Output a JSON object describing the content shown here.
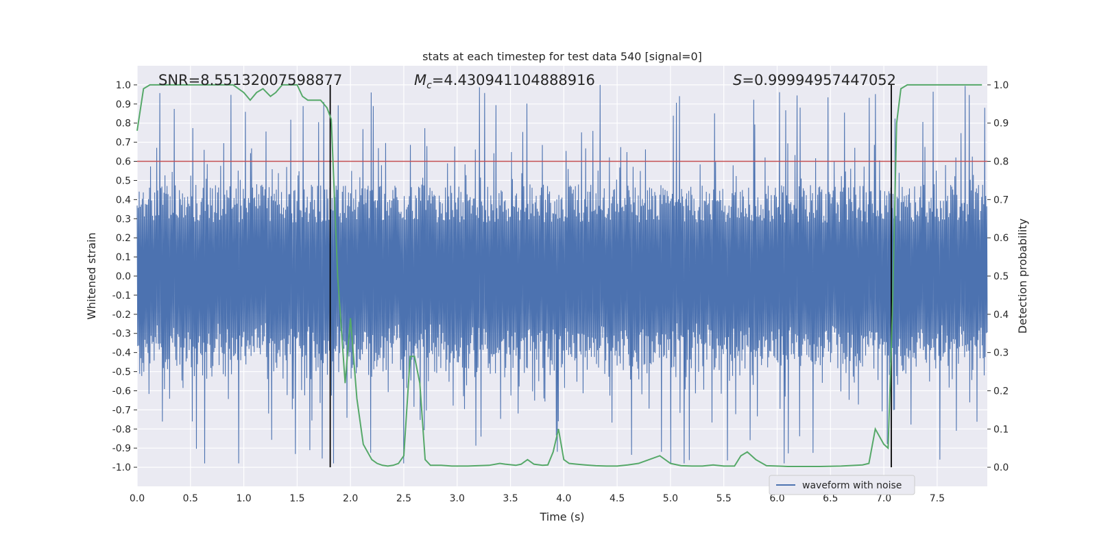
{
  "chart_data": {
    "type": "line",
    "title": "stats at each timestep for test data 540 [signal=0]",
    "xlabel": "Time (s)",
    "ylabel": "Whitened strain",
    "y2label": "Detection probability",
    "xlim": [
      0.0,
      7.97
    ],
    "ylim": [
      -1.1,
      1.1
    ],
    "y2lim": [
      -0.05,
      1.05
    ],
    "x_ticks": [
      "0.0",
      "0.5",
      "1.0",
      "1.5",
      "2.0",
      "2.5",
      "3.0",
      "3.5",
      "4.0",
      "4.5",
      "5.0",
      "5.5",
      "6.0",
      "6.5",
      "7.0",
      "7.5"
    ],
    "y_ticks": [
      "1.0",
      "0.9",
      "0.8",
      "0.7",
      "0.6",
      "0.5",
      "0.4",
      "0.3",
      "0.2",
      "0.1",
      "0.0",
      "-0.1",
      "-0.2",
      "-0.3",
      "-0.4",
      "-0.5",
      "-0.6",
      "-0.7",
      "-0.8",
      "-0.9",
      "-1.0"
    ],
    "y2_ticks": [
      "1.0",
      "0.9",
      "0.8",
      "0.7",
      "0.6",
      "0.5",
      "0.4",
      "0.3",
      "0.2",
      "0.1",
      "0.0"
    ],
    "threshold": 0.8,
    "vlines": [
      1.81,
      7.07
    ],
    "annotations": {
      "snr": "SNR=8.55132007598877",
      "mc_symbol": "M",
      "mc_sub": "c",
      "mc_value": "=4.430941104888916",
      "s_symbol": "S",
      "s_value": "=0.99994957447052"
    },
    "legend": {
      "position": "lower-center-right",
      "entries": [
        "waveform with noise"
      ]
    },
    "series": [
      {
        "name": "waveform with noise",
        "axis": "left",
        "color": "#4c72b0",
        "note": "dense noisy whitened strain, amplitude mostly within ±0.45 with spikes to ±1.0"
      },
      {
        "name": "detection probability",
        "axis": "right",
        "color": "#55a868",
        "x": [
          0.0,
          0.06,
          0.12,
          0.2,
          0.3,
          0.4,
          0.5,
          0.6,
          0.7,
          0.8,
          0.9,
          1.0,
          1.06,
          1.12,
          1.18,
          1.25,
          1.3,
          1.36,
          1.42,
          1.5,
          1.55,
          1.6,
          1.66,
          1.72,
          1.78,
          1.82,
          1.88,
          1.95,
          2.0,
          2.06,
          2.12,
          2.2,
          2.25,
          2.3,
          2.35,
          2.4,
          2.45,
          2.5,
          2.56,
          2.6,
          2.65,
          2.7,
          2.75,
          2.85,
          2.95,
          3.1,
          3.3,
          3.4,
          3.45,
          3.55,
          3.6,
          3.66,
          3.72,
          3.8,
          3.85,
          3.9,
          3.95,
          4.0,
          4.05,
          4.12,
          4.2,
          4.3,
          4.4,
          4.5,
          4.6,
          4.7,
          4.8,
          4.9,
          5.0,
          5.1,
          5.2,
          5.3,
          5.4,
          5.5,
          5.6,
          5.66,
          5.72,
          5.8,
          5.9,
          6.0,
          6.1,
          6.2,
          6.4,
          6.6,
          6.8,
          6.86,
          6.92,
          7.0,
          7.04,
          7.08,
          7.12,
          7.16,
          7.22,
          7.35,
          7.6,
          7.8,
          7.92
        ],
        "values": [
          0.88,
          0.99,
          1.0,
          1.0,
          1.0,
          1.0,
          1.0,
          1.0,
          1.0,
          1.0,
          1.0,
          0.98,
          0.96,
          0.98,
          0.99,
          0.97,
          0.98,
          1.0,
          1.0,
          1.0,
          0.97,
          0.96,
          0.96,
          0.96,
          0.94,
          0.91,
          0.5,
          0.22,
          0.39,
          0.18,
          0.06,
          0.02,
          0.01,
          0.005,
          0.003,
          0.005,
          0.01,
          0.03,
          0.29,
          0.29,
          0.22,
          0.02,
          0.005,
          0.005,
          0.003,
          0.003,
          0.005,
          0.01,
          0.008,
          0.005,
          0.008,
          0.02,
          0.008,
          0.005,
          0.006,
          0.04,
          0.1,
          0.02,
          0.01,
          0.008,
          0.006,
          0.004,
          0.003,
          0.003,
          0.006,
          0.01,
          0.02,
          0.03,
          0.01,
          0.004,
          0.003,
          0.003,
          0.006,
          0.003,
          0.003,
          0.03,
          0.04,
          0.02,
          0.004,
          0.003,
          0.002,
          0.002,
          0.002,
          0.003,
          0.006,
          0.01,
          0.1,
          0.06,
          0.05,
          0.4,
          0.9,
          0.99,
          1.0,
          1.0,
          1.0,
          1.0,
          1.0
        ]
      }
    ]
  }
}
